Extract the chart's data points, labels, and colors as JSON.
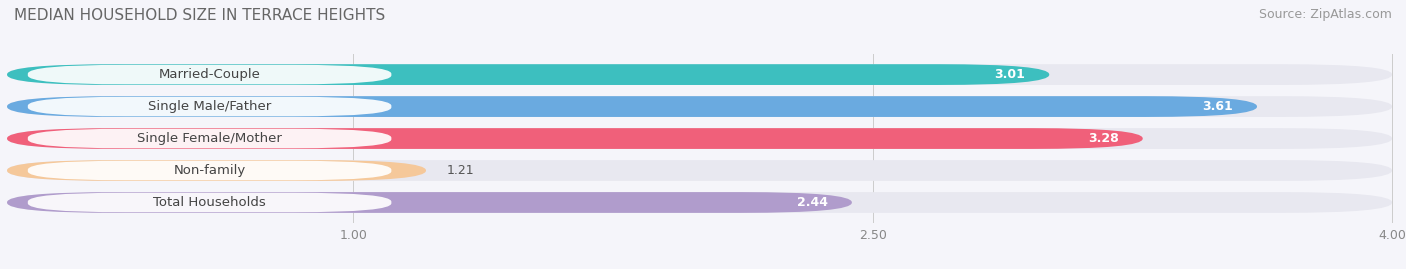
{
  "title": "MEDIAN HOUSEHOLD SIZE IN TERRACE HEIGHTS",
  "source": "Source: ZipAtlas.com",
  "categories": [
    "Married-Couple",
    "Single Male/Father",
    "Single Female/Mother",
    "Non-family",
    "Total Households"
  ],
  "values": [
    3.01,
    3.61,
    3.28,
    1.21,
    2.44
  ],
  "bar_colors": [
    "#3dbfbf",
    "#6aaae0",
    "#f0607a",
    "#f5c89a",
    "#b09ccc"
  ],
  "bar_bg_color": "#e8e8f0",
  "xmin": 0.0,
  "xmax": 4.0,
  "xticks": [
    1.0,
    2.5,
    4.0
  ],
  "title_fontsize": 11,
  "source_fontsize": 9,
  "label_fontsize": 9.5,
  "value_fontsize": 9,
  "background_color": "#f5f5fa",
  "label_box_color": "#ffffff"
}
